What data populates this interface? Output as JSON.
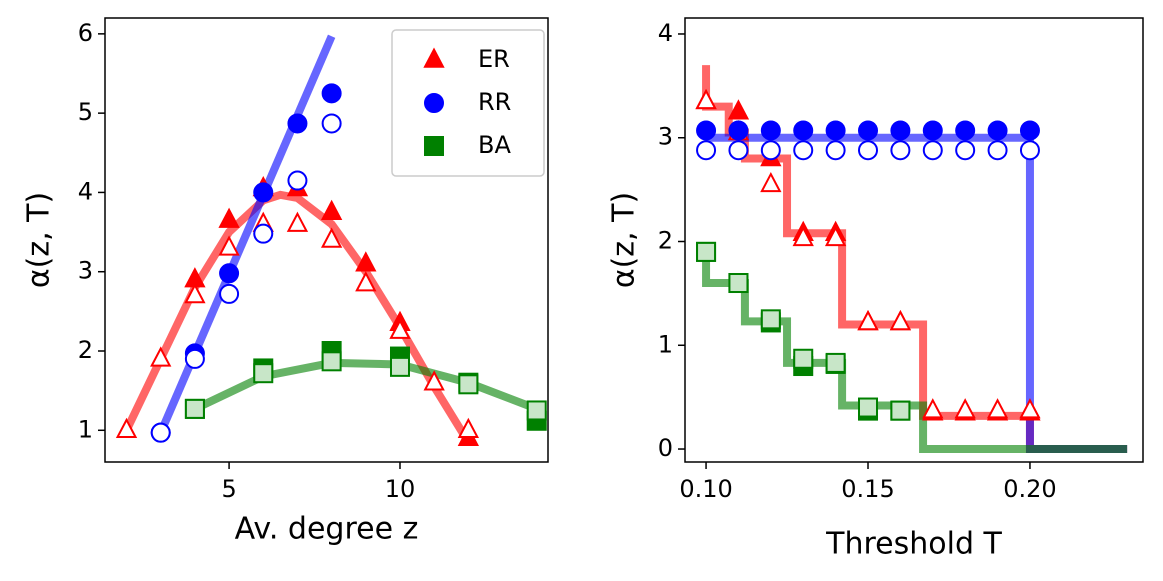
{
  "chart_data": [
    {
      "type": "line",
      "xlabel": "Av. degree z",
      "ylabel": "α(z, T)",
      "xlim": [
        1.37,
        14.33
      ],
      "ylim": [
        0.6,
        6.2
      ],
      "xticks": [
        5,
        10
      ],
      "yticks": [
        1,
        2,
        3,
        4,
        5,
        6
      ],
      "legend": "upper right",
      "series": [
        {
          "name": "ER",
          "color": "#ff0000",
          "marker": "^",
          "open_fill": "#ffffff",
          "x": [
            4,
            5,
            6,
            7,
            8,
            9,
            10,
            12
          ],
          "values": [
            2.9,
            3.65,
            4.05,
            4.05,
            3.75,
            3.1,
            2.35,
            0.9
          ],
          "open_x": [
            2,
            3,
            4,
            5,
            6,
            7,
            8,
            9,
            10,
            11,
            12
          ],
          "open_values": [
            1.0,
            1.9,
            2.7,
            3.3,
            3.6,
            3.6,
            3.4,
            2.85,
            2.25,
            1.6,
            1.0
          ],
          "line_x": [
            2,
            3,
            4,
            5,
            6,
            6.5,
            7,
            8,
            9,
            10,
            11,
            12
          ],
          "line_values": [
            1.0,
            1.9,
            2.8,
            3.5,
            3.9,
            3.97,
            3.93,
            3.6,
            3.0,
            2.3,
            1.55,
            0.85
          ]
        },
        {
          "name": "RR",
          "color": "#0000ff",
          "marker": "o",
          "open_fill": "#ffffff",
          "x": [
            3,
            4,
            5,
            6,
            7,
            8
          ],
          "values": [
            0.97,
            1.97,
            2.98,
            4.0,
            4.87,
            5.25
          ],
          "open_x": [
            3,
            4,
            5,
            6,
            7,
            8
          ],
          "open_values": [
            0.97,
            1.9,
            2.72,
            3.48,
            4.15,
            4.87
          ],
          "line_x": [
            3,
            8
          ],
          "line_values": [
            0.97,
            5.97
          ]
        },
        {
          "name": "BA",
          "color": "#008000",
          "marker": "s",
          "open_fill": "#c8e6c8",
          "x": [
            4,
            6,
            8,
            10,
            12,
            14
          ],
          "values": [
            1.27,
            1.78,
            2.0,
            1.93,
            1.6,
            1.12
          ],
          "open_x": [
            4,
            6,
            8,
            10,
            12,
            14
          ],
          "open_values": [
            1.27,
            1.72,
            1.87,
            1.8,
            1.58,
            1.25
          ],
          "line_x": [
            4,
            6,
            8,
            10,
            12,
            14
          ],
          "line_values": [
            1.27,
            1.68,
            1.85,
            1.83,
            1.6,
            1.27
          ]
        }
      ]
    },
    {
      "type": "line",
      "xlabel": "Threshold T",
      "ylabel": "α(z, T)",
      "xlim": [
        0.0935,
        0.2349
      ],
      "ylim": [
        -0.125,
        4.154
      ],
      "xticks": [
        {
          "value": 0.1,
          "label": "0.10"
        },
        {
          "value": 0.15,
          "label": "0.15"
        },
        {
          "value": 0.2,
          "label": "0.20"
        }
      ],
      "yticks": [
        0,
        1,
        2,
        3,
        4
      ],
      "series": [
        {
          "color": "#ff0000",
          "marker": "^",
          "open_fill": "#ffffff",
          "x": [
            0.1,
            0.11,
            0.12,
            0.13,
            0.14,
            0.15,
            0.16,
            0.17,
            0.18,
            0.19,
            0.2
          ],
          "values": [
            3.35,
            3.25,
            2.8,
            2.08,
            2.08,
            1.22,
            1.22,
            0.35,
            0.35,
            0.35,
            0.35
          ],
          "open_x": [
            0.1,
            0.11,
            0.12,
            0.13,
            0.14,
            0.15,
            0.16,
            0.17,
            0.18,
            0.19,
            0.2
          ],
          "open_values": [
            3.35,
            3.05,
            2.55,
            2.03,
            2.03,
            1.22,
            1.22,
            0.37,
            0.37,
            0.37,
            0.37
          ],
          "line_x": [
            0.1,
            0.1,
            0.107,
            0.107,
            0.112,
            0.112,
            0.125,
            0.125,
            0.142,
            0.142,
            0.167,
            0.167,
            0.2,
            0.2,
            0.23
          ],
          "line_values": [
            3.7,
            3.3,
            3.3,
            3.05,
            3.05,
            2.8,
            2.8,
            2.08,
            2.08,
            1.2,
            1.2,
            0.32,
            0.32,
            0,
            0
          ]
        },
        {
          "color": "#0000ff",
          "marker": "o",
          "open_fill": "#ffffff",
          "x": [
            0.1,
            0.11,
            0.12,
            0.13,
            0.14,
            0.15,
            0.16,
            0.17,
            0.18,
            0.19,
            0.2
          ],
          "values": [
            3.07,
            3.07,
            3.07,
            3.07,
            3.07,
            3.07,
            3.07,
            3.07,
            3.07,
            3.07,
            3.07
          ],
          "open_x": [
            0.1,
            0.11,
            0.12,
            0.13,
            0.14,
            0.15,
            0.16,
            0.17,
            0.18,
            0.19,
            0.2
          ],
          "open_values": [
            2.88,
            2.88,
            2.88,
            2.88,
            2.88,
            2.88,
            2.88,
            2.88,
            2.88,
            2.88,
            2.88
          ],
          "line_x": [
            0.1,
            0.2,
            0.2,
            0.23
          ],
          "line_values": [
            3.0,
            3.0,
            0,
            0
          ]
        },
        {
          "color": "#008000",
          "marker": "s",
          "open_fill": "#c8e6c8",
          "x": [
            0.1,
            0.11,
            0.12,
            0.13,
            0.14,
            0.15,
            0.16
          ],
          "values": [
            1.9,
            1.6,
            1.22,
            0.8,
            0.82,
            0.37,
            0.37
          ],
          "open_x": [
            0.1,
            0.11,
            0.12,
            0.13,
            0.14,
            0.15,
            0.16
          ],
          "open_values": [
            1.9,
            1.6,
            1.25,
            0.87,
            0.83,
            0.4,
            0.37
          ],
          "line_x": [
            0.1,
            0.1,
            0.112,
            0.112,
            0.125,
            0.125,
            0.142,
            0.142,
            0.167,
            0.167,
            0.23
          ],
          "line_values": [
            1.9,
            1.6,
            1.6,
            1.23,
            1.23,
            0.83,
            0.83,
            0.42,
            0.42,
            0,
            0
          ]
        }
      ]
    }
  ]
}
